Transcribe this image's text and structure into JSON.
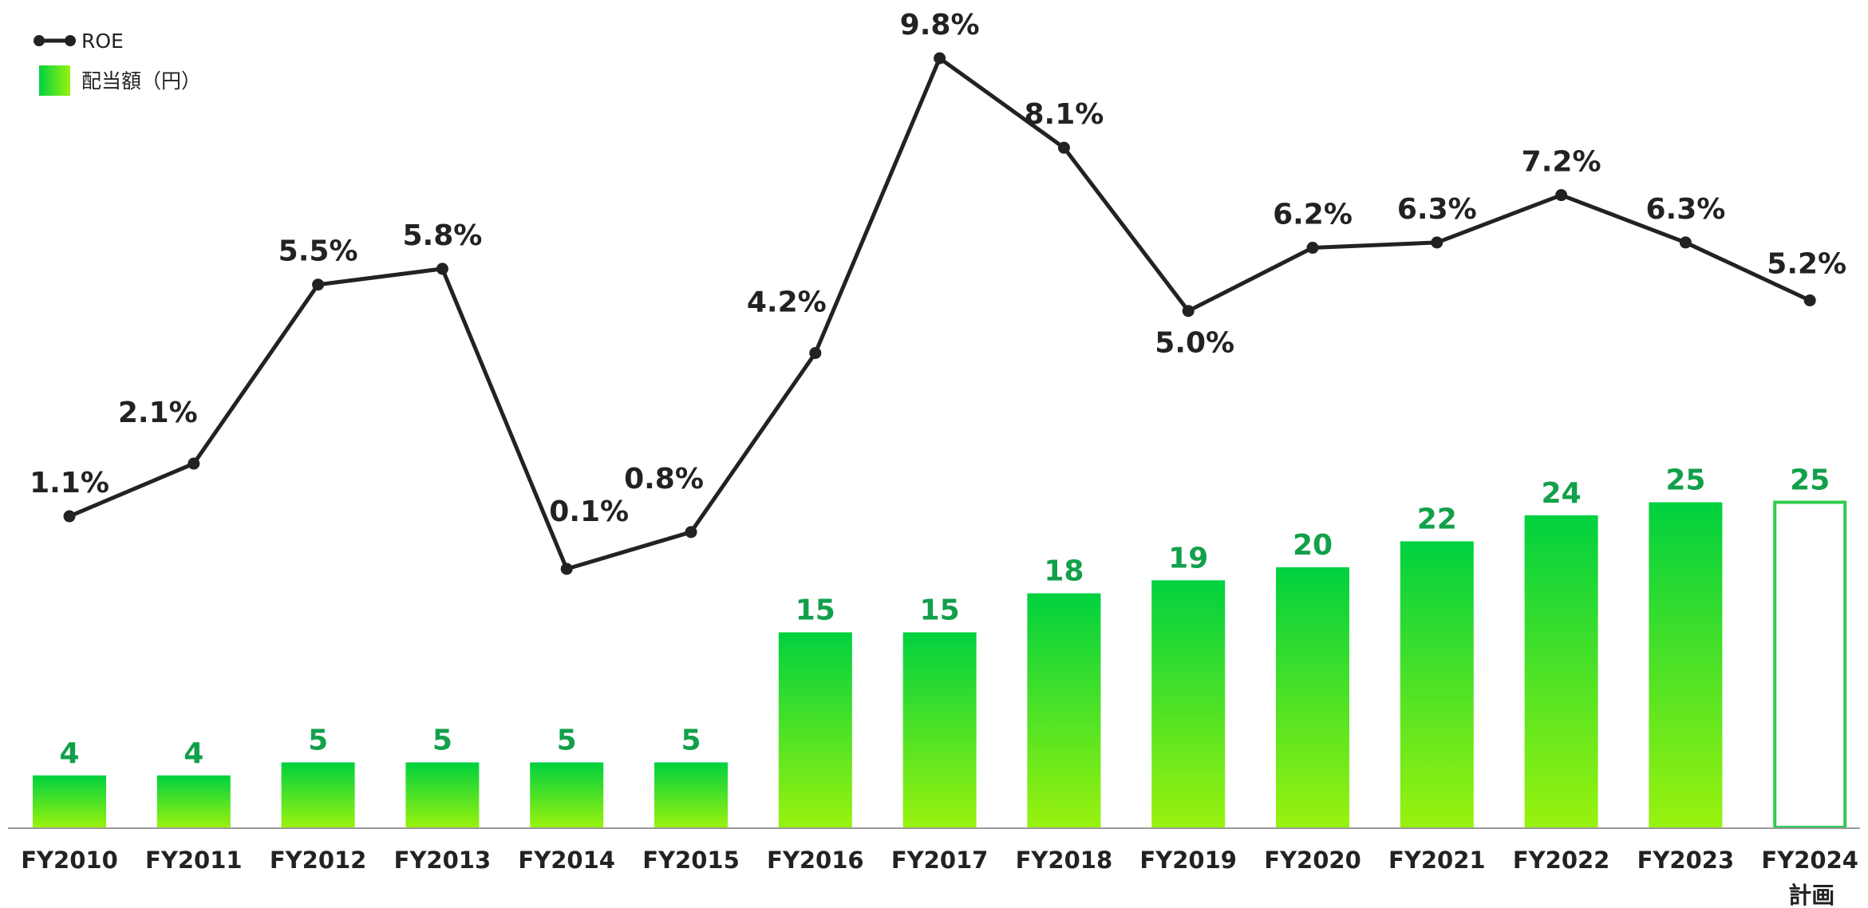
{
  "chart_data": {
    "type": "bar+line",
    "categories": [
      "FY2010",
      "FY2011",
      "FY2012",
      "FY2013",
      "FY2014",
      "FY2015",
      "FY2016",
      "FY2017",
      "FY2018",
      "FY2019",
      "FY2020",
      "FY2021",
      "FY2022",
      "FY2023",
      "FY2024"
    ],
    "category_sublabels": {
      "FY2024": "計画"
    },
    "series": [
      {
        "name": "配当額（円）",
        "type": "bar",
        "values": [
          4,
          4,
          5,
          5,
          5,
          5,
          15,
          15,
          18,
          19,
          20,
          22,
          24,
          25,
          25
        ],
        "labels": [
          "4",
          "4",
          "5",
          "5",
          "5",
          "5",
          "15",
          "15",
          "18",
          "19",
          "20",
          "22",
          "24",
          "25",
          "25"
        ],
        "planned": [
          false,
          false,
          false,
          false,
          false,
          false,
          false,
          false,
          false,
          false,
          false,
          false,
          false,
          false,
          true
        ]
      },
      {
        "name": "ROE",
        "type": "line",
        "values": [
          1.1,
          2.1,
          5.5,
          5.8,
          0.1,
          0.8,
          4.2,
          9.8,
          8.1,
          5.0,
          6.2,
          6.3,
          7.2,
          6.3,
          5.2
        ],
        "labels": [
          "1.1%",
          "2.1%",
          "5.5%",
          "5.8%",
          "0.1%",
          "0.8%",
          "4.2%",
          "9.8%",
          "8.1%",
          "5.0%",
          "6.2%",
          "6.3%",
          "7.2%",
          "6.3%",
          "5.2%"
        ]
      }
    ],
    "bar_ylim": [
      0,
      40
    ],
    "line_ylim": [
      -3.5,
      10.6
    ],
    "legend_position": "top-left",
    "grid": false,
    "colors": {
      "bar_top": "#00d13f",
      "bar_bottom": "#99f20e",
      "bar_label": "#12a04a",
      "planned_outline": "#2fcc4c",
      "line": "#222222",
      "axis": "#999999"
    }
  }
}
